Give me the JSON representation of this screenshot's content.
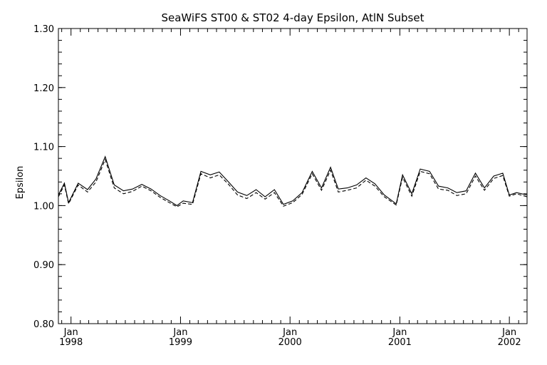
{
  "chart_data": {
    "type": "line",
    "title": "SeaWiFS ST00 & ST02 4-day Epsilon, AtlN Subset",
    "ylabel": "Epsilon",
    "xlabel": "",
    "ylim": [
      0.8,
      1.3
    ],
    "xlim": [
      "1997-11-20",
      "2002-03-01"
    ],
    "yticks": [
      {
        "v": 0.8,
        "label": "0.80"
      },
      {
        "v": 0.9,
        "label": "0.90"
      },
      {
        "v": 1.0,
        "label": "1.00"
      },
      {
        "v": 1.1,
        "label": "1.10"
      },
      {
        "v": 1.2,
        "label": "1.20"
      },
      {
        "v": 1.3,
        "label": "1.30"
      }
    ],
    "xticks": [
      {
        "date": "1998-01-01",
        "month": "Jan",
        "year": "1998"
      },
      {
        "date": "1999-01-01",
        "month": "Jan",
        "year": "1999"
      },
      {
        "date": "2000-01-01",
        "month": "Jan",
        "year": "2000"
      },
      {
        "date": "2001-01-01",
        "month": "Jan",
        "year": "2001"
      },
      {
        "date": "2002-01-01",
        "month": "Jan",
        "year": "2002"
      }
    ],
    "series": [
      {
        "style": "solid",
        "points": [
          [
            "1997-11-20",
            1.018
          ],
          [
            "1997-12-10",
            1.038
          ],
          [
            "1997-12-24",
            1.005
          ],
          [
            "1998-01-25",
            1.038
          ],
          [
            "1998-02-25",
            1.027
          ],
          [
            "1998-03-25",
            1.045
          ],
          [
            "1998-04-25",
            1.083
          ],
          [
            "1998-05-25",
            1.035
          ],
          [
            "1998-06-25",
            1.025
          ],
          [
            "1998-07-25",
            1.028
          ],
          [
            "1998-08-25",
            1.036
          ],
          [
            "1998-09-25",
            1.028
          ],
          [
            "1998-10-25",
            1.017
          ],
          [
            "1998-11-25",
            1.008
          ],
          [
            "1998-12-20",
            1.0
          ],
          [
            "1999-01-10",
            1.008
          ],
          [
            "1999-02-10",
            1.005
          ],
          [
            "1999-03-10",
            1.058
          ],
          [
            "1999-04-10",
            1.052
          ],
          [
            "1999-05-10",
            1.057
          ],
          [
            "1999-06-10",
            1.04
          ],
          [
            "1999-07-10",
            1.023
          ],
          [
            "1999-08-10",
            1.017
          ],
          [
            "1999-09-10",
            1.027
          ],
          [
            "1999-10-10",
            1.015
          ],
          [
            "1999-11-10",
            1.027
          ],
          [
            "1999-12-10",
            1.002
          ],
          [
            "2000-01-10",
            1.008
          ],
          [
            "2000-02-10",
            1.022
          ],
          [
            "2000-03-15",
            1.058
          ],
          [
            "2000-04-15",
            1.03
          ],
          [
            "2000-05-15",
            1.065
          ],
          [
            "2000-06-10",
            1.028
          ],
          [
            "2000-07-10",
            1.03
          ],
          [
            "2000-08-10",
            1.035
          ],
          [
            "2000-09-10",
            1.047
          ],
          [
            "2000-10-10",
            1.037
          ],
          [
            "2000-11-10",
            1.018
          ],
          [
            "2000-12-20",
            1.003
          ],
          [
            "2001-01-10",
            1.052
          ],
          [
            "2001-02-10",
            1.02
          ],
          [
            "2001-03-10",
            1.062
          ],
          [
            "2001-04-10",
            1.058
          ],
          [
            "2001-05-10",
            1.033
          ],
          [
            "2001-06-10",
            1.03
          ],
          [
            "2001-07-10",
            1.022
          ],
          [
            "2001-08-10",
            1.025
          ],
          [
            "2001-09-10",
            1.055
          ],
          [
            "2001-10-10",
            1.03
          ],
          [
            "2001-11-10",
            1.05
          ],
          [
            "2001-12-10",
            1.055
          ],
          [
            "2002-01-01",
            1.018
          ],
          [
            "2002-01-25",
            1.022
          ],
          [
            "2002-03-01",
            1.018
          ]
        ]
      },
      {
        "style": "dashed",
        "points": [
          [
            "1997-11-20",
            1.015
          ],
          [
            "1997-12-10",
            1.035
          ],
          [
            "1997-12-24",
            1.003
          ],
          [
            "1998-01-25",
            1.035
          ],
          [
            "1998-02-25",
            1.023
          ],
          [
            "1998-03-25",
            1.04
          ],
          [
            "1998-04-25",
            1.078
          ],
          [
            "1998-05-25",
            1.03
          ],
          [
            "1998-06-25",
            1.02
          ],
          [
            "1998-07-25",
            1.024
          ],
          [
            "1998-08-25",
            1.033
          ],
          [
            "1998-09-25",
            1.025
          ],
          [
            "1998-10-25",
            1.014
          ],
          [
            "1998-11-25",
            1.005
          ],
          [
            "1998-12-20",
            0.998
          ],
          [
            "1999-01-10",
            1.004
          ],
          [
            "1999-02-10",
            1.002
          ],
          [
            "1999-03-10",
            1.054
          ],
          [
            "1999-04-10",
            1.047
          ],
          [
            "1999-05-10",
            1.052
          ],
          [
            "1999-06-10",
            1.036
          ],
          [
            "1999-07-10",
            1.018
          ],
          [
            "1999-08-10",
            1.012
          ],
          [
            "1999-09-10",
            1.022
          ],
          [
            "1999-10-10",
            1.011
          ],
          [
            "1999-11-10",
            1.022
          ],
          [
            "1999-12-10",
            0.999
          ],
          [
            "2000-01-10",
            1.005
          ],
          [
            "2000-02-10",
            1.019
          ],
          [
            "2000-03-15",
            1.054
          ],
          [
            "2000-04-15",
            1.026
          ],
          [
            "2000-05-15",
            1.06
          ],
          [
            "2000-06-10",
            1.023
          ],
          [
            "2000-07-10",
            1.026
          ],
          [
            "2000-08-10",
            1.03
          ],
          [
            "2000-09-10",
            1.043
          ],
          [
            "2000-10-10",
            1.033
          ],
          [
            "2000-11-10",
            1.015
          ],
          [
            "2000-12-20",
            1.001
          ],
          [
            "2001-01-10",
            1.048
          ],
          [
            "2001-02-10",
            1.016
          ],
          [
            "2001-03-10",
            1.058
          ],
          [
            "2001-04-10",
            1.054
          ],
          [
            "2001-05-10",
            1.028
          ],
          [
            "2001-06-10",
            1.026
          ],
          [
            "2001-07-10",
            1.017
          ],
          [
            "2001-08-10",
            1.02
          ],
          [
            "2001-09-10",
            1.05
          ],
          [
            "2001-10-10",
            1.026
          ],
          [
            "2001-11-10",
            1.046
          ],
          [
            "2001-12-10",
            1.051
          ],
          [
            "2002-01-01",
            1.016
          ],
          [
            "2002-01-25",
            1.02
          ],
          [
            "2002-03-01",
            1.015
          ]
        ]
      }
    ]
  }
}
